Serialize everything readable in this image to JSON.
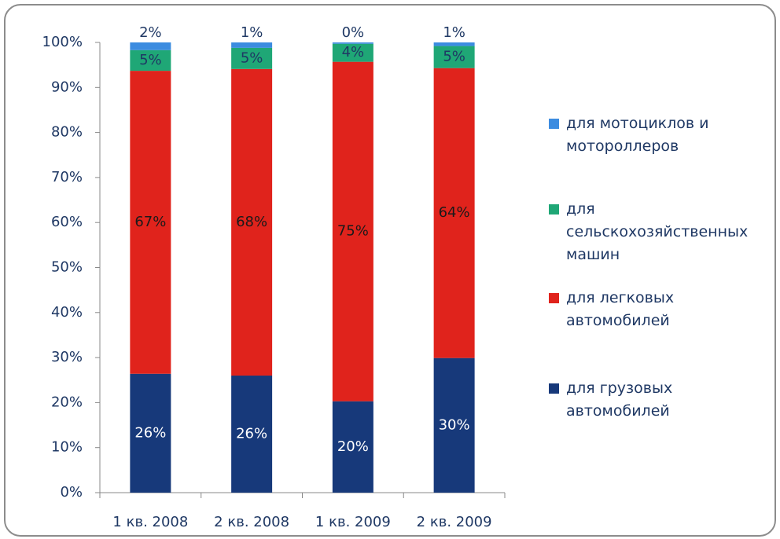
{
  "chart_data": {
    "type": "stacked_bar_100",
    "categories": [
      "1 кв. 2008",
      "2 кв. 2008",
      "1 кв. 2009",
      "2 кв. 2009"
    ],
    "series": [
      {
        "name": "для грузовых автомобилей",
        "color": "#17397a",
        "values": [
          26.4,
          26.0,
          20.3,
          29.9
        ],
        "value_labels": [
          "26%",
          "26%",
          "20%",
          "30%"
        ]
      },
      {
        "name": "для легковых автомобилей",
        "color": "#e0231c",
        "values": [
          67.3,
          68.1,
          75.4,
          64.4
        ],
        "value_labels": [
          "67%",
          "68%",
          "75%",
          "64%"
        ]
      },
      {
        "name": "для сельскохозяйственных машин",
        "color": "#1fa776",
        "values": [
          4.6,
          4.7,
          4.0,
          4.9
        ],
        "value_labels": [
          "5%",
          "5%",
          "4%",
          "5%"
        ]
      },
      {
        "name": "для мотоциклов и мотороллеров",
        "color": "#3c8ce0",
        "values": [
          1.7,
          1.2,
          0.3,
          0.8
        ],
        "value_labels": [
          "2%",
          "1%",
          "0%",
          "1%"
        ]
      }
    ],
    "ylim": [
      0,
      100
    ],
    "yticks": [
      {
        "value": 0,
        "label": "0%"
      },
      {
        "value": 10,
        "label": "10%"
      },
      {
        "value": 20,
        "label": "20%"
      },
      {
        "value": 30,
        "label": "30%"
      },
      {
        "value": 40,
        "label": "40%"
      },
      {
        "value": 50,
        "label": "50%"
      },
      {
        "value": 60,
        "label": "60%"
      },
      {
        "value": 70,
        "label": "70%"
      },
      {
        "value": 80,
        "label": "80%"
      },
      {
        "value": 90,
        "label": "90%"
      },
      {
        "value": 100,
        "label": "100%"
      }
    ],
    "legend": "right"
  }
}
